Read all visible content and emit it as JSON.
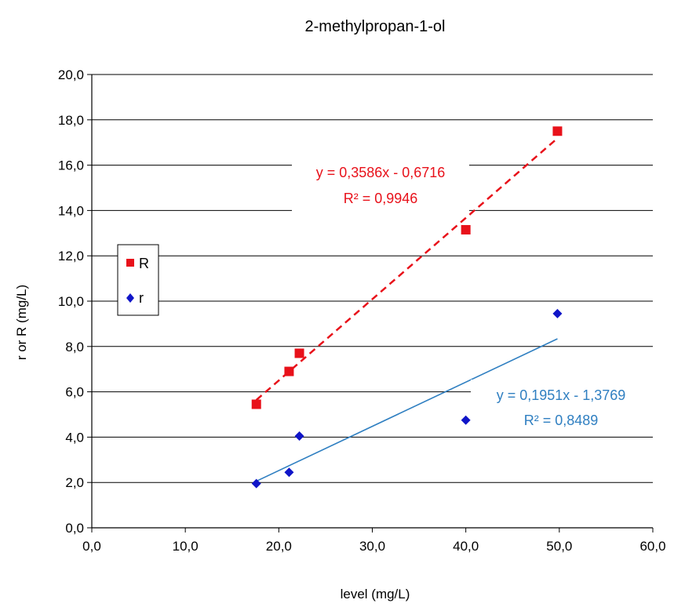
{
  "chart_data": {
    "type": "scatter",
    "title": "2-methylpropan-1-ol",
    "xlabel": "level (mg/L)",
    "ylabel": "r or R (mg/L)",
    "xlim": [
      0,
      60
    ],
    "ylim": [
      0,
      20
    ],
    "x_ticks": [
      "0,0",
      "10,0",
      "20,0",
      "30,0",
      "40,0",
      "50,0",
      "60,0"
    ],
    "y_ticks": [
      "0,0",
      "2,0",
      "4,0",
      "6,0",
      "8,0",
      "10,0",
      "12,0",
      "14,0",
      "16,0",
      "18,0",
      "20,0"
    ],
    "grid": "horizontal",
    "legend_position": "left",
    "series": [
      {
        "name": "R",
        "color": "#e8111a",
        "marker": "square",
        "x": [
          17.6,
          21.1,
          22.2,
          40.0,
          49.8
        ],
        "y": [
          5.45,
          6.9,
          7.7,
          13.15,
          17.5
        ],
        "trendline": {
          "slope": 0.3586,
          "intercept": -0.6716,
          "x_range": [
            17.6,
            49.8
          ],
          "style": "dashed",
          "equation": "y = 0,3586x - 0,6716",
          "r2": "R² = 0,9946"
        }
      },
      {
        "name": "r",
        "color": "#1015c8",
        "marker": "diamond",
        "x": [
          17.6,
          21.1,
          22.2,
          40.0,
          49.8
        ],
        "y": [
          1.95,
          2.45,
          4.05,
          4.75,
          9.45
        ],
        "trendline": {
          "slope": 0.1951,
          "intercept": -1.3769,
          "x_range": [
            17.6,
            49.8
          ],
          "style": "solid",
          "color": "#2f7fc1",
          "equation": "y = 0,1951x - 1,3769",
          "r2": "R² = 0,8489"
        }
      }
    ]
  }
}
